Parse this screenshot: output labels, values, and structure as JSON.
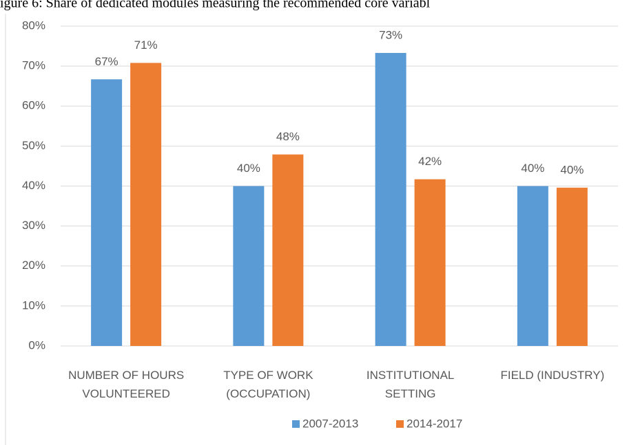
{
  "chart_data": {
    "type": "bar",
    "title": "igure 6: Share of dedicated modules measuring the recommended core variabl",
    "categories": [
      [
        "NUMBER OF HOURS",
        "VOLUNTEERED"
      ],
      [
        "TYPE OF WORK",
        "(OCCUPATION)"
      ],
      [
        "INSTITUTIONAL",
        "SETTING"
      ],
      [
        "FIELD (INDUSTRY)"
      ]
    ],
    "series": [
      {
        "name": "2007-2013",
        "color": "#5b9bd5",
        "values": [
          66.7,
          40,
          73.3,
          40
        ],
        "value_labels": [
          "67%",
          "40%",
          "73%",
          "40%"
        ]
      },
      {
        "name": "2014-2017",
        "color": "#ed7d31",
        "values": [
          70.8,
          47.9,
          41.7,
          39.6
        ],
        "value_labels": [
          "71%",
          "48%",
          "42%",
          "40%"
        ]
      }
    ],
    "ylim": [
      0,
      80
    ],
    "yticks": [
      {
        "value": 0,
        "label": "0%"
      },
      {
        "value": 10,
        "label": "10%"
      },
      {
        "value": 20,
        "label": "20%"
      },
      {
        "value": 30,
        "label": "30%"
      },
      {
        "value": 40,
        "label": "40%"
      },
      {
        "value": 50,
        "label": "50%"
      },
      {
        "value": 60,
        "label": "60%"
      },
      {
        "value": 70,
        "label": "70%"
      },
      {
        "value": 80,
        "label": "80%"
      }
    ],
    "grid": true,
    "legend": "bottom"
  }
}
